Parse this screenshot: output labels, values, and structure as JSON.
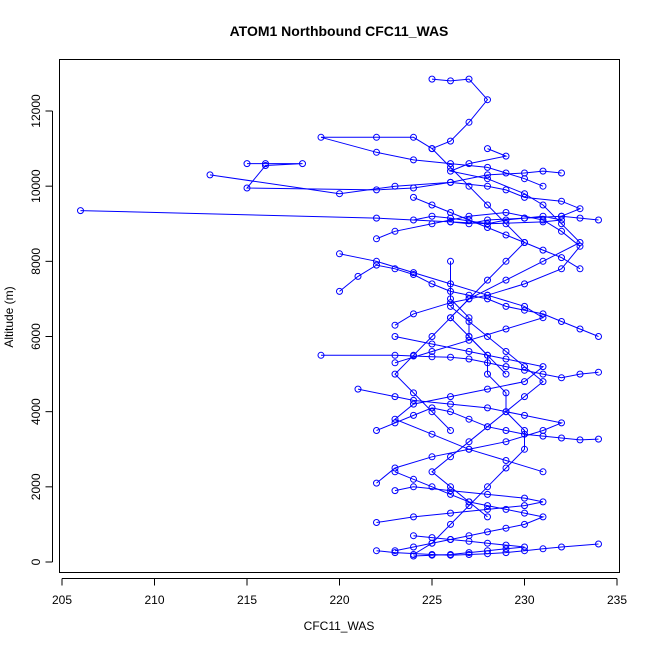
{
  "chart_data": {
    "type": "line",
    "title": "ATOM1 Northbound CFC11_WAS",
    "xlabel": "CFC11_WAS",
    "ylabel": "Altitude (m)",
    "xlim": [
      205,
      235
    ],
    "ylim": [
      0,
      12900
    ],
    "xticks": [
      "205",
      "210",
      "215",
      "220",
      "225",
      "230",
      "235"
    ],
    "yticks": [
      "0",
      "2000",
      "4000",
      "6000",
      "8000",
      "10000",
      "12000"
    ],
    "grid": false,
    "legend": "none",
    "marker": "open-circle",
    "color": "#0000ff",
    "series": [
      {
        "x": [
          206,
          222,
          226,
          228,
          229,
          230,
          231,
          232,
          231,
          228,
          226,
          225,
          224,
          226,
          227,
          228,
          230,
          232,
          233,
          234
        ],
        "y": [
          9350,
          9150,
          9050,
          9000,
          9100,
          9150,
          9200,
          9100,
          9050,
          9000,
          9150,
          9200,
          9100,
          9050,
          9000,
          9100,
          9150,
          9200,
          9150,
          9100
        ]
      },
      {
        "x": [
          225,
          226,
          227,
          228,
          227,
          226,
          225,
          224,
          222,
          219,
          222,
          224,
          226,
          228,
          229,
          230,
          231
        ],
        "y": [
          12850,
          12800,
          12850,
          12300,
          11700,
          11200,
          11000,
          11300,
          11300,
          11300,
          10900,
          10700,
          10600,
          10500,
          10350,
          10200,
          10000
        ]
      },
      {
        "x": [
          213,
          220,
          223,
          226,
          228,
          229,
          230,
          232,
          233,
          232
        ],
        "y": [
          10300,
          9800,
          10000,
          10100,
          10000,
          9900,
          9700,
          9600,
          9400,
          9200
        ]
      },
      {
        "x": [
          215,
          216,
          218,
          216,
          215,
          222,
          224,
          226,
          228,
          230,
          231,
          232
        ],
        "y": [
          10600,
          10600,
          10600,
          10550,
          9950,
          9900,
          9950,
          10100,
          10300,
          10350,
          10400,
          10350
        ]
      },
      {
        "x": [
          219,
          223,
          224,
          225,
          226,
          227,
          228,
          229,
          230,
          231,
          232,
          233,
          234
        ],
        "y": [
          5500,
          5500,
          5480,
          5460,
          5450,
          5400,
          5300,
          5200,
          5100,
          5000,
          4900,
          5000,
          5050
        ]
      },
      {
        "x": [
          220,
          221,
          222,
          223,
          224,
          225,
          226,
          227,
          228,
          229,
          230,
          231,
          232,
          233,
          234
        ],
        "y": [
          7200,
          7600,
          7900,
          7800,
          7650,
          7400,
          7200,
          7100,
          7000,
          6800,
          6700,
          6600,
          6400,
          6200,
          6000
        ]
      },
      {
        "x": [
          222,
          223,
          224,
          225,
          226,
          227,
          228,
          229,
          230,
          231,
          232,
          233,
          234
        ],
        "y": [
          3500,
          3700,
          3900,
          4100,
          4000,
          3800,
          3600,
          3500,
          3400,
          3350,
          3300,
          3250,
          3270
        ]
      },
      {
        "x": [
          222,
          223,
          225,
          226,
          227,
          228,
          229,
          230,
          231,
          232,
          234
        ],
        "y": [
          300,
          250,
          200,
          180,
          200,
          220,
          250,
          300,
          350,
          400,
          480
        ]
      },
      {
        "x": [
          223,
          224,
          225,
          226,
          227,
          228,
          229,
          230,
          231,
          230,
          229,
          228,
          227,
          226,
          225,
          224,
          223
        ],
        "y": [
          2400,
          2200,
          2000,
          1800,
          1600,
          1500,
          1400,
          1300,
          1200,
          1000,
          900,
          800,
          700,
          600,
          500,
          400,
          300
        ]
      },
      {
        "x": [
          226,
          226,
          227,
          227,
          228,
          228,
          229,
          229,
          230,
          230,
          229,
          228,
          227,
          226,
          225,
          224
        ],
        "y": [
          8000,
          7000,
          6500,
          6000,
          5500,
          5000,
          4500,
          4000,
          3500,
          3000,
          2500,
          2000,
          1500,
          1000,
          500,
          200
        ]
      },
      {
        "x": [
          225,
          226,
          227,
          228,
          229,
          230,
          229,
          228,
          227,
          226,
          225,
          224,
          223,
          224,
          225,
          226
        ],
        "y": [
          11000,
          10500,
          10000,
          9500,
          9000,
          8500,
          8000,
          7500,
          7000,
          6500,
          6000,
          5500,
          5000,
          4500,
          4000,
          3500
        ]
      },
      {
        "x": [
          228,
          229,
          227,
          226,
          228,
          230,
          231,
          232,
          233,
          231,
          229,
          227,
          226,
          227,
          228,
          229
        ],
        "y": [
          11000,
          10800,
          10600,
          10400,
          10200,
          9800,
          9500,
          9000,
          8500,
          8000,
          7500,
          7000,
          6500,
          6000,
          5500,
          5000
        ]
      },
      {
        "x": [
          222,
          223,
          225,
          227,
          229,
          231,
          232,
          233,
          232,
          230,
          228,
          226,
          224,
          223
        ],
        "y": [
          8600,
          8800,
          9000,
          9200,
          9300,
          9100,
          8800,
          8400,
          7800,
          7400,
          7100,
          6900,
          6600,
          6300
        ]
      },
      {
        "x": [
          221,
          223,
          224,
          226,
          228,
          230,
          232,
          231,
          229,
          227,
          225,
          223,
          222
        ],
        "y": [
          4600,
          4400,
          4300,
          4200,
          4100,
          3900,
          3700,
          3500,
          3200,
          3000,
          2800,
          2500,
          2100
        ]
      },
      {
        "x": [
          222,
          224,
          226,
          228,
          230,
          231,
          230,
          228,
          226,
          224,
          223
        ],
        "y": [
          1050,
          1200,
          1300,
          1400,
          1500,
          1600,
          1700,
          1800,
          1900,
          2000,
          1900
        ]
      },
      {
        "x": [
          226,
          227,
          228,
          229,
          230,
          231,
          230,
          229,
          228,
          227,
          226,
          225,
          226,
          227,
          228
        ],
        "y": [
          6800,
          6400,
          6000,
          5600,
          5200,
          4800,
          4400,
          4000,
          3600,
          3200,
          2800,
          2400,
          2000,
          1600,
          1200
        ]
      },
      {
        "x": [
          224,
          225,
          226,
          227,
          228,
          229,
          230,
          231,
          232,
          233
        ],
        "y": [
          9700,
          9500,
          9300,
          9100,
          8900,
          8700,
          8500,
          8300,
          8100,
          7800
        ]
      },
      {
        "x": [
          223,
          225,
          227,
          229,
          231,
          230,
          228,
          226,
          224,
          223,
          225,
          227,
          229,
          231
        ],
        "y": [
          6000,
          5800,
          5600,
          5400,
          5200,
          4800,
          4600,
          4400,
          4200,
          3800,
          3400,
          3000,
          2700,
          2400
        ]
      },
      {
        "x": [
          220,
          222,
          224,
          226,
          228,
          230,
          231,
          229,
          227,
          225,
          223
        ],
        "y": [
          8200,
          8000,
          7700,
          7400,
          7100,
          6800,
          6500,
          6200,
          5900,
          5600,
          5300
        ]
      },
      {
        "x": [
          224,
          225,
          226,
          227,
          228,
          229,
          230,
          229,
          228,
          227,
          226,
          225,
          224
        ],
        "y": [
          700,
          650,
          600,
          550,
          500,
          450,
          400,
          350,
          300,
          250,
          200,
          180,
          160
        ]
      }
    ]
  }
}
